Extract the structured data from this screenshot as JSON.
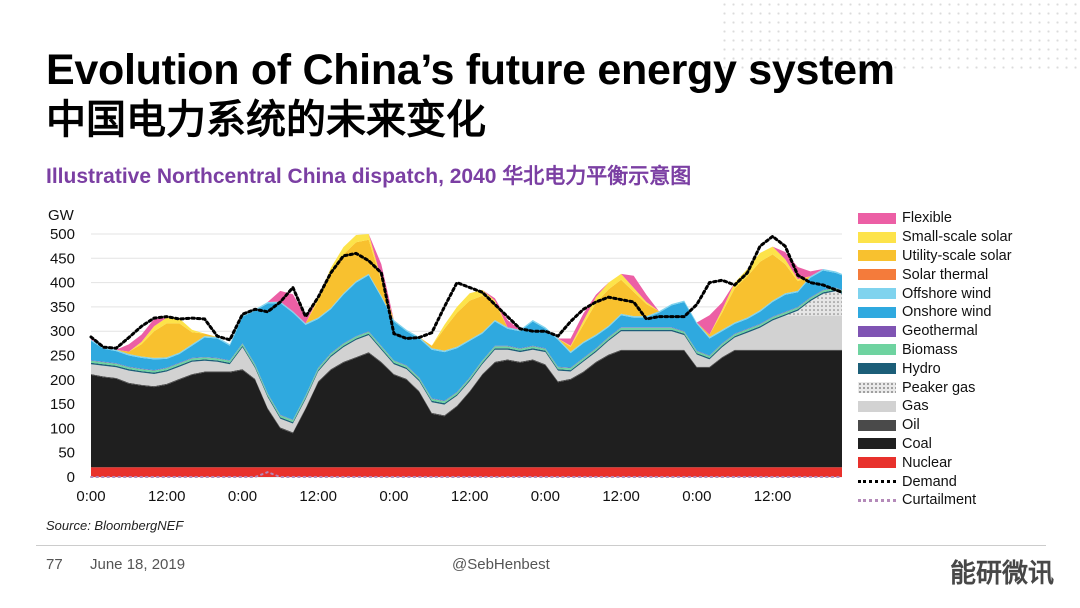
{
  "slide": {
    "title": "Evolution of China’s future energy system",
    "title_cn": "中国电力系统的未来变化",
    "subtitle": "Illustrative Northcentral China dispatch, 2040 华北电力平衡示意图",
    "source": "Source: BloombergNEF",
    "page_number": "77",
    "date": "June 18, 2019",
    "handle": "@SebHenbest",
    "watermark": "能研微讯"
  },
  "chart_data": {
    "type": "area",
    "ylabel": "GW",
    "ylim": [
      0,
      500
    ],
    "yticks": [
      0,
      50,
      100,
      150,
      200,
      250,
      300,
      350,
      400,
      450,
      500
    ],
    "xlim": [
      0,
      119
    ],
    "xticks": [
      {
        "x": 0,
        "label": "0:00"
      },
      {
        "x": 12,
        "label": "12:00"
      },
      {
        "x": 24,
        "label": "0:00"
      },
      {
        "x": 36,
        "label": "12:00"
      },
      {
        "x": 48,
        "label": "0:00"
      },
      {
        "x": 60,
        "label": "12:00"
      },
      {
        "x": 72,
        "label": "0:00"
      },
      {
        "x": 84,
        "label": "12:00"
      },
      {
        "x": 96,
        "label": "0:00"
      },
      {
        "x": 108,
        "label": "12:00"
      }
    ],
    "x": [
      0,
      2,
      4,
      6,
      8,
      10,
      12,
      14,
      16,
      18,
      20,
      22,
      24,
      26,
      28,
      30,
      32,
      34,
      36,
      38,
      40,
      42,
      44,
      46,
      48,
      50,
      52,
      54,
      56,
      58,
      60,
      62,
      64,
      66,
      68,
      70,
      72,
      74,
      76,
      78,
      80,
      82,
      84,
      86,
      88,
      90,
      92,
      94,
      96,
      98,
      100,
      102,
      104,
      106,
      108,
      110,
      112,
      114,
      116,
      118,
      119
    ],
    "series": [
      {
        "name": "Nuclear",
        "color": "#e8312c",
        "values": [
          20,
          20,
          20,
          20,
          20,
          20,
          20,
          20,
          20,
          20,
          20,
          20,
          20,
          20,
          20,
          20,
          20,
          20,
          20,
          20,
          20,
          20,
          20,
          20,
          20,
          20,
          20,
          20,
          20,
          20,
          20,
          20,
          20,
          20,
          20,
          20,
          20,
          20,
          20,
          20,
          20,
          20,
          20,
          20,
          20,
          20,
          20,
          20,
          20,
          20,
          20,
          20,
          20,
          20,
          20,
          20,
          20,
          20,
          20,
          20,
          20
        ]
      },
      {
        "name": "Coal",
        "color": "#1f1f1f",
        "values": [
          190,
          185,
          182,
          172,
          168,
          165,
          170,
          180,
          190,
          195,
          195,
          195,
          200,
          180,
          120,
          80,
          70,
          120,
          175,
          200,
          215,
          225,
          235,
          215,
          190,
          180,
          155,
          110,
          105,
          125,
          155,
          190,
          215,
          220,
          215,
          220,
          210,
          175,
          180,
          195,
          215,
          230,
          240,
          240,
          240,
          240,
          240,
          240,
          205,
          205,
          225,
          240,
          240,
          240,
          240,
          240,
          240,
          240,
          240,
          240,
          240
        ]
      },
      {
        "name": "Oil",
        "color": "#4a4a4a",
        "values": [
          2,
          2,
          2,
          2,
          2,
          2,
          2,
          2,
          2,
          2,
          2,
          2,
          2,
          2,
          2,
          2,
          2,
          2,
          2,
          2,
          2,
          2,
          2,
          2,
          2,
          2,
          2,
          2,
          2,
          2,
          2,
          2,
          2,
          2,
          2,
          2,
          2,
          2,
          2,
          2,
          2,
          2,
          2,
          2,
          2,
          2,
          2,
          2,
          2,
          2,
          2,
          2,
          2,
          2,
          2,
          2,
          2,
          2,
          2,
          2,
          2
        ]
      },
      {
        "name": "Gas",
        "color": "#d2d2d2",
        "values": [
          20,
          22,
          22,
          25,
          25,
          25,
          25,
          25,
          25,
          22,
          20,
          15,
          45,
          22,
          22,
          18,
          18,
          18,
          20,
          25,
          30,
          35,
          35,
          25,
          20,
          20,
          20,
          22,
          22,
          20,
          20,
          20,
          25,
          20,
          20,
          20,
          25,
          22,
          15,
          20,
          20,
          28,
          38,
          38,
          38,
          38,
          38,
          30,
          25,
          15,
          20,
          25,
          35,
          45,
          60,
          70,
          70,
          70,
          70,
          70,
          70
        ]
      },
      {
        "name": "Peaker gas",
        "color": "#bdbdbd",
        "values": [
          0,
          0,
          0,
          0,
          0,
          0,
          0,
          0,
          0,
          0,
          0,
          0,
          0,
          0,
          0,
          0,
          0,
          0,
          0,
          0,
          0,
          0,
          0,
          0,
          0,
          0,
          0,
          0,
          0,
          0,
          0,
          0,
          0,
          0,
          0,
          0,
          0,
          0,
          0,
          0,
          0,
          0,
          0,
          0,
          0,
          0,
          0,
          0,
          0,
          0,
          0,
          0,
          0,
          0,
          0,
          0,
          10,
          30,
          45,
          50,
          45
        ]
      },
      {
        "name": "Hydro",
        "color": "#1c5e78",
        "values": [
          3,
          3,
          3,
          3,
          3,
          3,
          3,
          3,
          3,
          3,
          3,
          3,
          3,
          3,
          3,
          3,
          3,
          3,
          3,
          3,
          3,
          3,
          3,
          3,
          3,
          3,
          3,
          3,
          3,
          3,
          3,
          3,
          3,
          3,
          3,
          3,
          3,
          3,
          3,
          3,
          3,
          3,
          3,
          3,
          3,
          3,
          3,
          3,
          3,
          3,
          3,
          3,
          3,
          3,
          3,
          3,
          3,
          3,
          3,
          3,
          3
        ]
      },
      {
        "name": "Biomass",
        "color": "#6ed3a0",
        "values": [
          4,
          4,
          4,
          4,
          4,
          4,
          4,
          4,
          4,
          4,
          4,
          4,
          4,
          4,
          4,
          4,
          4,
          4,
          4,
          4,
          4,
          4,
          4,
          4,
          4,
          4,
          4,
          4,
          4,
          4,
          4,
          4,
          4,
          4,
          4,
          4,
          4,
          4,
          4,
          4,
          4,
          4,
          4,
          4,
          4,
          4,
          4,
          4,
          4,
          4,
          4,
          4,
          4,
          4,
          4,
          4,
          4,
          4,
          4,
          4,
          4
        ]
      },
      {
        "name": "Geothermal",
        "color": "#7f54b3",
        "values": [
          1,
          1,
          1,
          1,
          1,
          1,
          1,
          1,
          1,
          1,
          1,
          1,
          1,
          1,
          1,
          1,
          1,
          1,
          1,
          1,
          1,
          1,
          1,
          1,
          1,
          1,
          1,
          1,
          1,
          1,
          1,
          1,
          1,
          1,
          1,
          1,
          1,
          1,
          1,
          1,
          1,
          1,
          1,
          1,
          1,
          1,
          1,
          1,
          1,
          1,
          1,
          1,
          1,
          1,
          1,
          1,
          1,
          1,
          1,
          1,
          1
        ]
      },
      {
        "name": "Onshore wind",
        "color": "#2fa9df",
        "values": [
          40,
          27,
          25,
          23,
          22,
          22,
          18,
          18,
          25,
          40,
          40,
          30,
          55,
          110,
          185,
          230,
          220,
          145,
          100,
          90,
          100,
          110,
          115,
          100,
          80,
          70,
          80,
          100,
          100,
          90,
          75,
          55,
          50,
          35,
          35,
          50,
          40,
          55,
          30,
          30,
          25,
          20,
          25,
          20,
          20,
          30,
          45,
          60,
          55,
          35,
          25,
          20,
          20,
          25,
          30,
          35,
          30,
          40,
          40,
          30,
          30
        ]
      },
      {
        "name": "Offshore wind",
        "color": "#7fd3ee",
        "values": [
          3,
          3,
          3,
          3,
          3,
          3,
          3,
          3,
          3,
          3,
          3,
          3,
          3,
          3,
          3,
          3,
          3,
          3,
          3,
          3,
          3,
          3,
          3,
          3,
          3,
          3,
          3,
          3,
          3,
          3,
          3,
          3,
          3,
          3,
          3,
          3,
          3,
          3,
          3,
          3,
          3,
          3,
          3,
          3,
          3,
          3,
          3,
          3,
          3,
          3,
          3,
          3,
          3,
          3,
          3,
          3,
          3,
          3,
          3,
          3,
          3
        ]
      },
      {
        "name": "Solar thermal",
        "color": "#f47b3b",
        "values": [
          0,
          0,
          0,
          0,
          0,
          0,
          0,
          0,
          0,
          0,
          0,
          0,
          0,
          0,
          0,
          0,
          0,
          0,
          0,
          0,
          0,
          0,
          0,
          0,
          0,
          0,
          0,
          0,
          0,
          0,
          0,
          0,
          0,
          0,
          0,
          0,
          0,
          0,
          0,
          0,
          0,
          0,
          0,
          0,
          0,
          0,
          0,
          0,
          0,
          0,
          0,
          0,
          0,
          0,
          0,
          0,
          0,
          0,
          0,
          0,
          0
        ]
      },
      {
        "name": "Utility-scale solar",
        "color": "#f8c12f",
        "values": [
          0,
          0,
          0,
          5,
          25,
          55,
          70,
          60,
          25,
          5,
          0,
          0,
          0,
          0,
          0,
          0,
          0,
          0,
          35,
          70,
          80,
          80,
          70,
          30,
          0,
          0,
          0,
          5,
          45,
          70,
          80,
          75,
          35,
          0,
          0,
          0,
          0,
          0,
          10,
          35,
          65,
          75,
          70,
          50,
          25,
          0,
          0,
          0,
          0,
          5,
          35,
          70,
          85,
          100,
          95,
          60,
          20,
          0,
          0,
          0,
          0
        ]
      },
      {
        "name": "Small-scale solar",
        "color": "#fde34a",
        "values": [
          0,
          0,
          0,
          0,
          5,
          10,
          12,
          10,
          5,
          0,
          0,
          0,
          0,
          0,
          0,
          0,
          0,
          0,
          5,
          12,
          15,
          15,
          12,
          5,
          0,
          0,
          0,
          0,
          8,
          12,
          15,
          12,
          5,
          0,
          0,
          0,
          0,
          0,
          2,
          8,
          12,
          14,
          12,
          8,
          4,
          0,
          0,
          0,
          0,
          0,
          6,
          12,
          15,
          18,
          16,
          10,
          4,
          0,
          0,
          0,
          0
        ]
      },
      {
        "name": "Flexible",
        "color": "#ec5fa5",
        "values": [
          5,
          0,
          0,
          15,
          15,
          15,
          0,
          0,
          0,
          0,
          0,
          0,
          0,
          0,
          0,
          22,
          35,
          15,
          0,
          0,
          0,
          0,
          0,
          30,
          0,
          0,
          0,
          0,
          0,
          0,
          0,
          0,
          5,
          15,
          0,
          0,
          0,
          0,
          15,
          15,
          5,
          0,
          0,
          25,
          15,
          0,
          0,
          0,
          0,
          40,
          15,
          0,
          0,
          0,
          0,
          15,
          25,
          10,
          0,
          0,
          0
        ]
      }
    ],
    "lines": [
      {
        "name": "Demand",
        "color": "#000000",
        "style": "dotted",
        "values": [
          288,
          267,
          265,
          287,
          310,
          327,
          330,
          325,
          327,
          325,
          290,
          282,
          335,
          345,
          340,
          360,
          390,
          330,
          370,
          420,
          455,
          460,
          445,
          420,
          295,
          285,
          287,
          297,
          350,
          400,
          390,
          380,
          355,
          330,
          305,
          300,
          300,
          290,
          320,
          345,
          360,
          370,
          365,
          360,
          325,
          330,
          330,
          330,
          355,
          400,
          405,
          395,
          420,
          475,
          495,
          475,
          415,
          400,
          395,
          385,
          380
        ]
      },
      {
        "name": "Curtailment",
        "color": "#b48ab9",
        "style": "dotted",
        "values": [
          0,
          0,
          0,
          0,
          0,
          0,
          0,
          0,
          0,
          0,
          0,
          0,
          0,
          0,
          10,
          0,
          0,
          0,
          0,
          0,
          0,
          0,
          0,
          0,
          0,
          0,
          0,
          0,
          0,
          0,
          0,
          0,
          0,
          0,
          0,
          0,
          0,
          0,
          0,
          0,
          0,
          0,
          0,
          0,
          0,
          0,
          0,
          0,
          0,
          0,
          0,
          0,
          0,
          0,
          0,
          0,
          0,
          0,
          0,
          0,
          0
        ]
      }
    ],
    "legend": {
      "position": "right"
    }
  },
  "legend_order": [
    "Flexible",
    "Small-scale solar",
    "Utility-scale solar",
    "Solar thermal",
    "Offshore wind",
    "Onshore wind",
    "Geothermal",
    "Biomass",
    "Hydro",
    "Peaker gas",
    "Gas",
    "Oil",
    "Coal",
    "Nuclear",
    "Demand",
    "Curtailment"
  ]
}
